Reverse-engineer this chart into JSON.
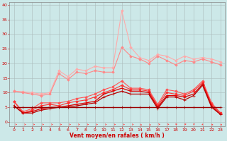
{
  "x": [
    0,
    1,
    2,
    3,
    4,
    5,
    6,
    7,
    8,
    9,
    10,
    11,
    12,
    13,
    14,
    15,
    16,
    17,
    18,
    19,
    20,
    21,
    22,
    23
  ],
  "series": [
    {
      "color": "#ffaaaa",
      "linewidth": 0.8,
      "marker": "D",
      "markersize": 1.8,
      "values": [
        10.5,
        10.3,
        10.0,
        9.5,
        10.0,
        17.5,
        15.5,
        18.0,
        17.5,
        19.0,
        18.5,
        18.5,
        38.0,
        25.5,
        22.0,
        21.0,
        23.0,
        22.5,
        21.0,
        22.5,
        21.5,
        22.0,
        21.5,
        20.5
      ]
    },
    {
      "color": "#ff8888",
      "linewidth": 0.8,
      "marker": "D",
      "markersize": 1.8,
      "values": [
        10.5,
        10.0,
        9.5,
        9.0,
        9.5,
        16.5,
        14.5,
        17.0,
        16.5,
        17.5,
        17.0,
        17.0,
        25.5,
        22.5,
        21.5,
        20.0,
        22.5,
        21.0,
        19.5,
        21.0,
        20.5,
        21.5,
        20.5,
        19.5
      ]
    },
    {
      "color": "#ff5555",
      "linewidth": 0.8,
      "marker": "D",
      "markersize": 1.8,
      "values": [
        7.0,
        3.5,
        4.5,
        6.5,
        6.5,
        6.5,
        7.0,
        8.0,
        8.5,
        9.5,
        11.0,
        12.0,
        14.0,
        11.5,
        11.5,
        11.0,
        6.0,
        11.0,
        10.5,
        9.5,
        11.0,
        14.0,
        6.5,
        3.0
      ]
    },
    {
      "color": "#ff3333",
      "linewidth": 0.8,
      "marker": "D",
      "markersize": 1.8,
      "values": [
        7.0,
        3.0,
        4.0,
        5.5,
        6.0,
        5.5,
        6.5,
        7.0,
        7.5,
        8.5,
        10.0,
        11.0,
        12.5,
        11.0,
        11.0,
        10.5,
        5.5,
        10.0,
        9.5,
        9.0,
        10.5,
        13.5,
        6.0,
        3.0
      ]
    },
    {
      "color": "#dd0000",
      "linewidth": 0.9,
      "marker": "+",
      "markersize": 3.0,
      "values": [
        5.5,
        3.0,
        3.5,
        4.5,
        5.0,
        5.0,
        5.5,
        6.0,
        6.5,
        7.0,
        9.5,
        10.5,
        11.5,
        10.5,
        10.5,
        10.0,
        5.0,
        9.0,
        9.0,
        8.5,
        9.5,
        13.0,
        5.5,
        2.5
      ]
    },
    {
      "color": "#bb0000",
      "linewidth": 0.9,
      "marker": "+",
      "markersize": 3.0,
      "values": [
        5.5,
        3.0,
        3.0,
        4.0,
        4.5,
        5.0,
        5.0,
        5.5,
        6.0,
        6.5,
        8.5,
        9.5,
        10.5,
        9.5,
        9.5,
        9.5,
        4.5,
        8.5,
        8.5,
        7.5,
        9.0,
        12.5,
        5.0,
        2.5
      ]
    },
    {
      "color": "#990000",
      "linewidth": 1.0,
      "marker": "+",
      "markersize": 2.5,
      "values": [
        5.0,
        5.0,
        5.0,
        5.0,
        5.0,
        5.0,
        5.0,
        5.0,
        5.0,
        5.0,
        5.0,
        5.0,
        5.0,
        5.0,
        5.0,
        5.0,
        5.0,
        5.0,
        5.0,
        5.0,
        5.0,
        5.0,
        5.0,
        5.0
      ]
    }
  ],
  "xlabel": "Vent moyen/en rafales ( km/h )",
  "xlim": [
    -0.5,
    23.5
  ],
  "ylim": [
    -1.5,
    41
  ],
  "yticks": [
    0,
    5,
    10,
    15,
    20,
    25,
    30,
    35,
    40
  ],
  "xticks": [
    0,
    1,
    2,
    3,
    4,
    5,
    6,
    7,
    8,
    9,
    10,
    11,
    12,
    13,
    14,
    15,
    16,
    17,
    18,
    19,
    20,
    21,
    22,
    23
  ],
  "bg_color": "#cce8e8",
  "grid_color": "#aabbbb",
  "xlabel_color": "#cc0000",
  "tick_color": "#cc0000",
  "arrow_color": "#ff4444",
  "figwidth": 3.2,
  "figheight": 2.0,
  "dpi": 100
}
